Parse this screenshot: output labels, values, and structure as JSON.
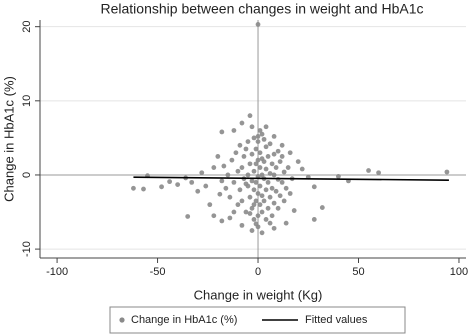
{
  "chart_data": {
    "type": "scatter",
    "title": "Relationship between changes in weight and HbA1c",
    "x_label": "Change in weight (Kg)",
    "y_label": "Change in HbA1c (%)",
    "xlim": [
      -108.5,
      103.5
    ],
    "ylim": [
      -11.2,
      20.9
    ],
    "xticks": [
      -100,
      -50,
      0,
      50,
      100
    ],
    "yticks": [
      -10,
      0,
      10,
      20
    ],
    "grid": true,
    "xline": 0,
    "yline": 0,
    "series": [
      {
        "name": "Change in HbA1c (%)",
        "color": "#8a8a8a",
        "x": [
          0,
          -62,
          -57,
          -55,
          -48,
          -44,
          -40,
          -36,
          -33,
          -30,
          -28,
          -26,
          -35,
          -24,
          -22,
          -18,
          -14,
          -20,
          -22,
          -18,
          -12,
          -8,
          -4,
          4,
          8,
          12,
          16,
          20,
          22,
          25,
          28,
          32,
          28,
          40,
          45,
          55,
          60,
          94,
          18,
          14,
          8,
          2,
          -3,
          -8,
          0,
          -14,
          -13,
          -12,
          -11,
          -10,
          -10,
          -9,
          -9,
          -8,
          -8,
          -7,
          -7,
          -6,
          -6,
          -5,
          -5,
          -5,
          -4,
          -4,
          -3,
          -3,
          -3,
          -2,
          -2,
          -2,
          -2,
          -1,
          -1,
          -1,
          -1,
          0,
          0,
          0,
          0,
          0,
          1,
          1,
          1,
          1,
          2,
          2,
          2,
          2,
          2,
          3,
          3,
          3,
          4,
          4,
          4,
          4,
          5,
          5,
          5,
          6,
          6,
          6,
          7,
          7,
          7,
          8,
          8,
          8,
          9,
          9,
          10,
          10,
          10,
          11,
          11,
          12,
          12,
          13,
          13,
          14,
          15,
          16,
          17,
          -15,
          -16,
          -17,
          -18,
          -19,
          -12,
          -6,
          -4,
          3,
          6,
          -1,
          1,
          -3,
          0,
          -2
        ],
        "values": [
          20.3,
          -1.8,
          -1.9,
          -0.1,
          -1.6,
          -0.9,
          -1.3,
          -0.4,
          -1.0,
          -2.2,
          0.3,
          -1.5,
          -5.6,
          -4.0,
          -5.5,
          -6.2,
          -5.8,
          2.5,
          1.0,
          5.8,
          6.0,
          7.0,
          8.0,
          6.5,
          5.2,
          4.0,
          3.0,
          1.8,
          0.8,
          -0.3,
          -1.6,
          -4.4,
          -6.0,
          -0.2,
          -0.8,
          0.6,
          0.3,
          0.4,
          -4.8,
          -6.5,
          -7.2,
          -7.8,
          -7.5,
          -6.8,
          -7.0,
          -3,
          2,
          -1,
          3,
          -4,
          0.5,
          -2,
          4,
          1,
          -3.5,
          -0.5,
          2.5,
          -5,
          3.5,
          -1.5,
          0,
          4.5,
          -3,
          1.5,
          -4.5,
          -0.8,
          2.8,
          -6,
          -2,
          0.5,
          5,
          -3.5,
          -1,
          1.5,
          3.5,
          -5.5,
          -2.5,
          -0.2,
          2,
          4.5,
          -4,
          -1.5,
          1,
          3,
          -5,
          -2.8,
          0,
          2.2,
          5.5,
          -3.5,
          -0.5,
          1.8,
          -6,
          -2,
          0.8,
          3.8,
          -4.5,
          -1,
          2.5,
          -3,
          0.2,
          4.2,
          -5.5,
          -1.8,
          1.5,
          -3.8,
          0,
          2.8,
          -2.2,
          1,
          -4.5,
          -0.6,
          3.2,
          -2.8,
          1.8,
          -1,
          2.5,
          -3.5,
          0.4,
          -1.8,
          1,
          -2.5,
          -0.5,
          0,
          -1.8,
          1.2,
          -0.8,
          -2.6,
          -5,
          -1.2,
          -5.2,
          4.8,
          -6.5,
          -6.6,
          6,
          6.5,
          5.2,
          -4
        ]
      },
      {
        "name": "Fitted values",
        "color": "#000000",
        "kind": "line",
        "x": [
          -62,
          95
        ],
        "values": [
          -0.3,
          -0.7
        ]
      }
    ]
  }
}
